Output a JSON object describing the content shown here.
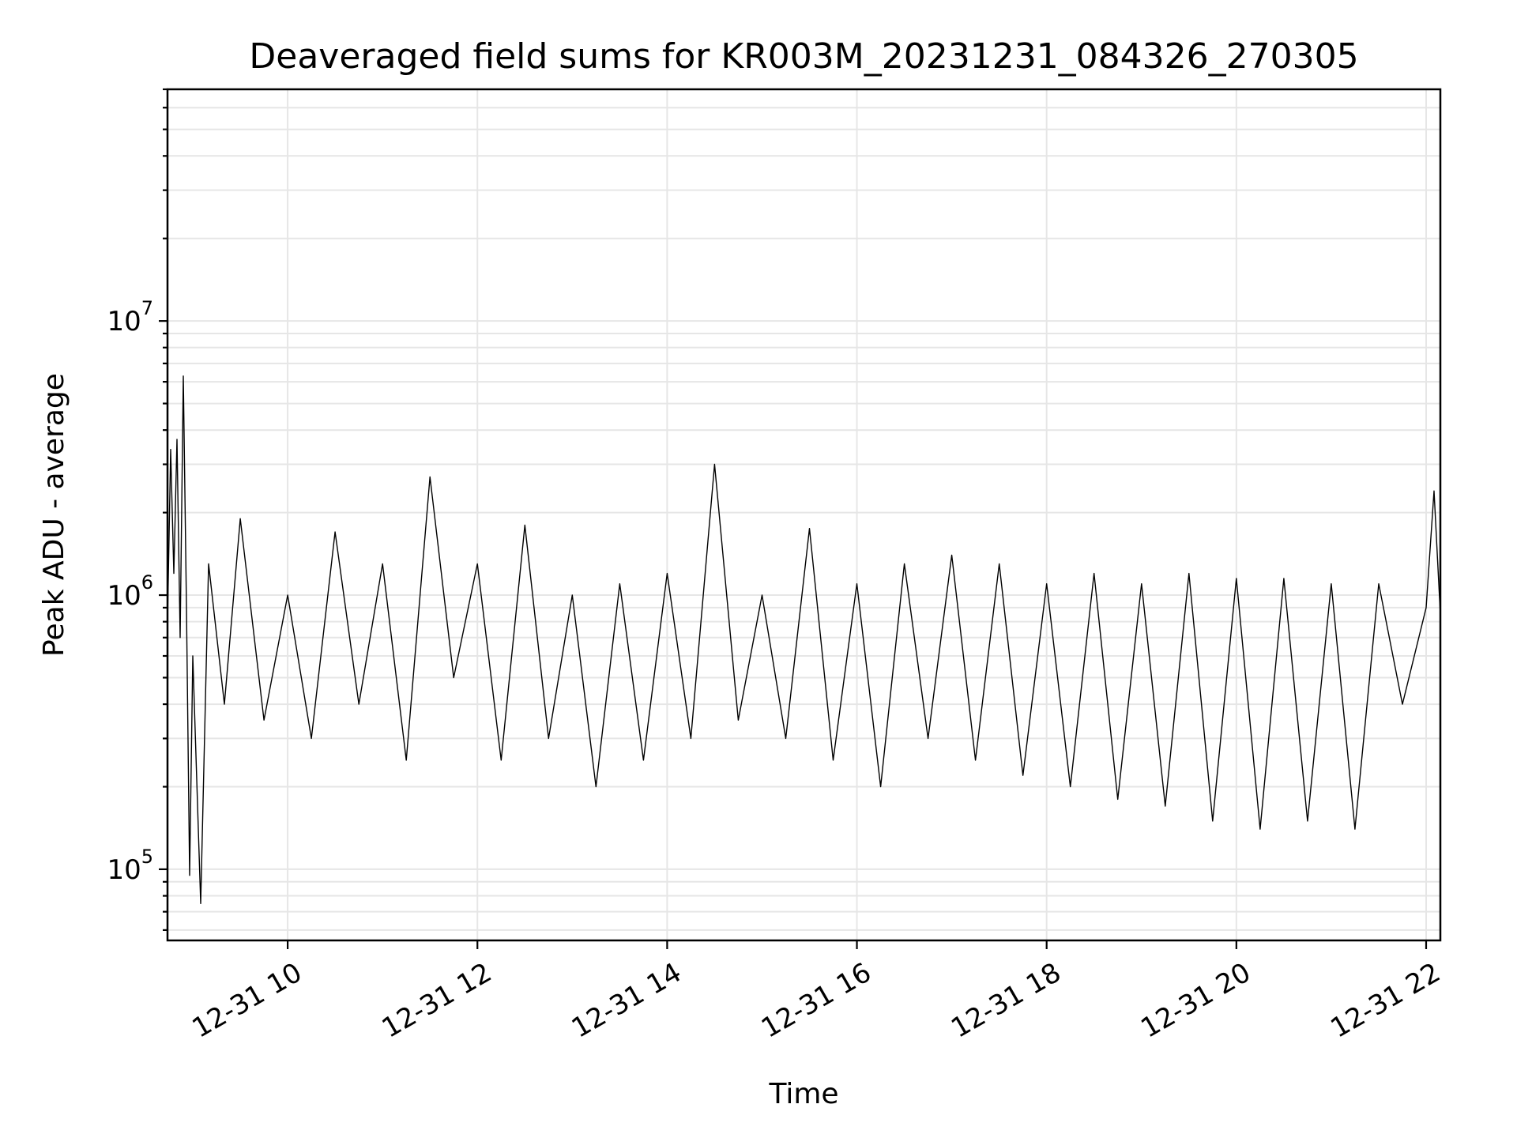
{
  "chart_data": {
    "type": "line",
    "title": "Deaveraged field sums for KR003M_20231231_084326_270305",
    "xlabel": "Time",
    "ylabel": "Peak ADU - average",
    "yscale": "log",
    "xlim": [
      "2023-12-31 08:44",
      "2023-12-31 22:09"
    ],
    "ylim": [
      55000,
      70000000
    ],
    "grid": true,
    "x_ticks": [
      {
        "value": "2023-12-31 10:00",
        "label": "12-31 10"
      },
      {
        "value": "2023-12-31 12:00",
        "label": "12-31 12"
      },
      {
        "value": "2023-12-31 14:00",
        "label": "12-31 14"
      },
      {
        "value": "2023-12-31 16:00",
        "label": "12-31 16"
      },
      {
        "value": "2023-12-31 18:00",
        "label": "12-31 18"
      },
      {
        "value": "2023-12-31 20:00",
        "label": "12-31 20"
      },
      {
        "value": "2023-12-31 22:00",
        "label": "12-31 22"
      }
    ],
    "y_ticks": [
      {
        "value": 100000,
        "base": "10",
        "exp": "5"
      },
      {
        "value": 1000000,
        "base": "10",
        "exp": "6"
      },
      {
        "value": 10000000,
        "base": "10",
        "exp": "7"
      }
    ],
    "series": [
      {
        "color": "#000000",
        "x": [
          "2023-12-31 08:44",
          "2023-12-31 08:46",
          "2023-12-31 08:48",
          "2023-12-31 08:50",
          "2023-12-31 08:52",
          "2023-12-31 08:54",
          "2023-12-31 08:56",
          "2023-12-31 08:58",
          "2023-12-31 09:00",
          "2023-12-31 09:05",
          "2023-12-31 09:10",
          "2023-12-31 09:20",
          "2023-12-31 09:30",
          "2023-12-31 09:45",
          "2023-12-31 10:00",
          "2023-12-31 10:15",
          "2023-12-31 10:30",
          "2023-12-31 10:45",
          "2023-12-31 11:00",
          "2023-12-31 11:15",
          "2023-12-31 11:30",
          "2023-12-31 11:45",
          "2023-12-31 12:00",
          "2023-12-31 12:15",
          "2023-12-31 12:30",
          "2023-12-31 12:45",
          "2023-12-31 13:00",
          "2023-12-31 13:15",
          "2023-12-31 13:30",
          "2023-12-31 13:45",
          "2023-12-31 14:00",
          "2023-12-31 14:15",
          "2023-12-31 14:30",
          "2023-12-31 14:45",
          "2023-12-31 15:00",
          "2023-12-31 15:15",
          "2023-12-31 15:30",
          "2023-12-31 15:45",
          "2023-12-31 16:00",
          "2023-12-31 16:15",
          "2023-12-31 16:30",
          "2023-12-31 16:45",
          "2023-12-31 17:00",
          "2023-12-31 17:15",
          "2023-12-31 17:30",
          "2023-12-31 17:45",
          "2023-12-31 18:00",
          "2023-12-31 18:15",
          "2023-12-31 18:30",
          "2023-12-31 18:45",
          "2023-12-31 19:00",
          "2023-12-31 19:15",
          "2023-12-31 19:30",
          "2023-12-31 19:45",
          "2023-12-31 20:00",
          "2023-12-31 20:15",
          "2023-12-31 20:30",
          "2023-12-31 20:45",
          "2023-12-31 21:00",
          "2023-12-31 21:15",
          "2023-12-31 21:30",
          "2023-12-31 21:45",
          "2023-12-31 22:00",
          "2023-12-31 22:05",
          "2023-12-31 22:09"
        ],
        "y": [
          800000,
          3400000,
          1200000,
          3700000,
          700000,
          6300000,
          900000,
          95000,
          600000,
          75000,
          1300000,
          400000,
          1900000,
          350000,
          1000000,
          300000,
          1700000,
          400000,
          1300000,
          250000,
          2700000,
          500000,
          1300000,
          250000,
          1800000,
          300000,
          1000000,
          200000,
          1100000,
          250000,
          1200000,
          300000,
          3000000,
          350000,
          1000000,
          300000,
          1750000,
          250000,
          1100000,
          200000,
          1300000,
          300000,
          1400000,
          250000,
          1300000,
          220000,
          1100000,
          200000,
          1200000,
          180000,
          1100000,
          170000,
          1200000,
          150000,
          1150000,
          140000,
          1150000,
          150000,
          1100000,
          140000,
          1100000,
          400000,
          900000,
          2400000,
          850000
        ]
      }
    ]
  }
}
